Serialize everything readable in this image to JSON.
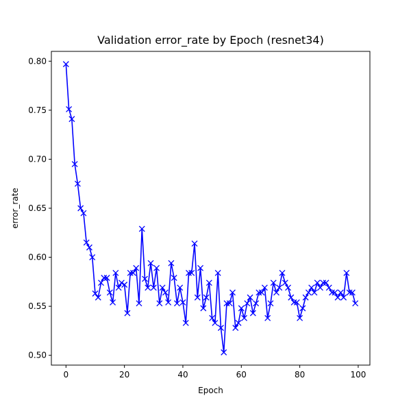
{
  "chart_data": {
    "type": "line",
    "title": "Validation error_rate by Epoch (resnet34)",
    "xlabel": "Epoch",
    "ylabel": "error_rate",
    "xlim": [
      -5,
      104
    ],
    "ylim": [
      0.49,
      0.81
    ],
    "xticks": [
      0,
      20,
      40,
      60,
      80,
      100
    ],
    "yticks": [
      0.5,
      0.55,
      0.6,
      0.65,
      0.7,
      0.75,
      0.8
    ],
    "xtick_labels": [
      "0",
      "20",
      "40",
      "60",
      "80",
      "100"
    ],
    "ytick_labels": [
      "0.50",
      "0.55",
      "0.60",
      "0.65",
      "0.70",
      "0.75",
      "0.80"
    ],
    "grid": false,
    "series": [
      {
        "color": "#0000ff",
        "marker": "x",
        "x": [
          0,
          1,
          2,
          3,
          4,
          5,
          6,
          7,
          8,
          9,
          10,
          11,
          12,
          13,
          14,
          15,
          16,
          17,
          18,
          19,
          20,
          21,
          22,
          23,
          24,
          25,
          26,
          27,
          28,
          29,
          30,
          31,
          32,
          33,
          34,
          35,
          36,
          37,
          38,
          39,
          40,
          41,
          42,
          43,
          44,
          45,
          46,
          47,
          48,
          49,
          50,
          51,
          52,
          53,
          54,
          55,
          56,
          57,
          58,
          59,
          60,
          61,
          62,
          63,
          64,
          65,
          66,
          67,
          68,
          69,
          70,
          71,
          72,
          73,
          74,
          75,
          76,
          77,
          78,
          79,
          80,
          81,
          82,
          83,
          84,
          85,
          86,
          87,
          88,
          89,
          90,
          91,
          92,
          93,
          94,
          95,
          96,
          97,
          98,
          99
        ],
        "y": [
          0.797,
          0.751,
          0.741,
          0.695,
          0.675,
          0.65,
          0.645,
          0.615,
          0.61,
          0.6,
          0.563,
          0.559,
          0.574,
          0.579,
          0.579,
          0.564,
          0.554,
          0.584,
          0.569,
          0.574,
          0.572,
          0.543,
          0.584,
          0.584,
          0.589,
          0.553,
          0.629,
          0.578,
          0.569,
          0.594,
          0.569,
          0.589,
          0.553,
          0.569,
          0.564,
          0.554,
          0.594,
          0.579,
          0.553,
          0.569,
          0.554,
          0.533,
          0.584,
          0.584,
          0.614,
          0.559,
          0.589,
          0.548,
          0.559,
          0.574,
          0.538,
          0.533,
          0.584,
          0.528,
          0.503,
          0.553,
          0.553,
          0.564,
          0.528,
          0.533,
          0.548,
          0.538,
          0.553,
          0.559,
          0.543,
          0.553,
          0.564,
          0.564,
          0.569,
          0.538,
          0.553,
          0.574,
          0.564,
          0.569,
          0.584,
          0.574,
          0.569,
          0.559,
          0.554,
          0.554,
          0.538,
          0.548,
          0.559,
          0.564,
          0.569,
          0.564,
          0.574,
          0.569,
          0.574,
          0.574,
          0.569,
          0.564,
          0.564,
          0.559,
          0.564,
          0.559,
          0.584,
          0.564,
          0.564,
          0.553
        ]
      }
    ]
  }
}
